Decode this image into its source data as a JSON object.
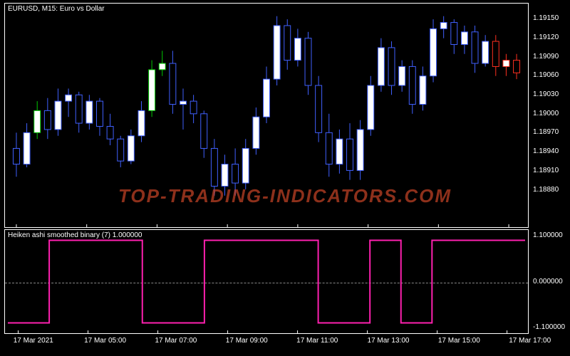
{
  "symbol_title": "EURUSD, M15:  Euro vs  Dollar",
  "indicator_title": "Heiken ashi smoothed binary (7)  1.000000",
  "watermark": "TOP-TRADING-INDICATORS.COM",
  "colors": {
    "background": "#000000",
    "border": "#ffffff",
    "text": "#ffffff",
    "bull_body": "#ffffff",
    "bear_body": "#000000",
    "bull_wick": "#00c800",
    "bear_wick": "#4060ff",
    "red_wick": "#ff3020",
    "indicator_line": "#ff20b0",
    "dotted": "#888888",
    "watermark": "#d94a2a"
  },
  "main_y": {
    "min": 1.1882,
    "max": 1.19175,
    "ticks": [
      1.1915,
      1.1912,
      1.1909,
      1.1906,
      1.1903,
      1.19,
      1.1897,
      1.1894,
      1.1891,
      1.1888
    ],
    "labels": [
      "1.19150",
      "1.19120",
      "1.19090",
      "1.19060",
      "1.19030",
      "1.19000",
      "1.18970",
      "1.18940",
      "1.18910",
      "1.18880"
    ]
  },
  "sub_y": {
    "min": -1.25,
    "max": 1.25,
    "zero_label": "0.000000",
    "hi_label": "1.100000",
    "lo_label": "-1.100000",
    "hi": 1.1,
    "lo": -1.1
  },
  "x_ticks": {
    "positions": [
      0.02,
      0.155,
      0.29,
      0.425,
      0.56,
      0.695,
      0.83,
      0.965
    ],
    "labels": [
      "17 Mar 2021",
      "17 Mar 05:00",
      "17 Mar 07:00",
      "17 Mar 09:00",
      "17 Mar 11:00",
      "17 Mar 13:00",
      "17 Mar 15:00",
      "17 Mar 17:00"
    ]
  },
  "candles": [
    {
      "o": 1.18945,
      "h": 1.1897,
      "l": 1.189,
      "c": 1.1892,
      "w": "b"
    },
    {
      "o": 1.1892,
      "h": 1.18985,
      "l": 1.18915,
      "c": 1.1897,
      "w": "b"
    },
    {
      "o": 1.1897,
      "h": 1.1902,
      "l": 1.1896,
      "c": 1.19005,
      "w": "g"
    },
    {
      "o": 1.19005,
      "h": 1.19025,
      "l": 1.1896,
      "c": 1.18975,
      "w": "b"
    },
    {
      "o": 1.18975,
      "h": 1.1904,
      "l": 1.18965,
      "c": 1.1902,
      "w": "b"
    },
    {
      "o": 1.1902,
      "h": 1.1904,
      "l": 1.18995,
      "c": 1.1903,
      "w": "b"
    },
    {
      "o": 1.1903,
      "h": 1.19035,
      "l": 1.1897,
      "c": 1.18985,
      "w": "b"
    },
    {
      "o": 1.18985,
      "h": 1.1903,
      "l": 1.18975,
      "c": 1.1902,
      "w": "b"
    },
    {
      "o": 1.1902,
      "h": 1.19025,
      "l": 1.18965,
      "c": 1.1898,
      "w": "b"
    },
    {
      "o": 1.1898,
      "h": 1.19,
      "l": 1.1895,
      "c": 1.1896,
      "w": "b"
    },
    {
      "o": 1.1896,
      "h": 1.18965,
      "l": 1.18915,
      "c": 1.18925,
      "w": "b"
    },
    {
      "o": 1.18925,
      "h": 1.18975,
      "l": 1.1892,
      "c": 1.18965,
      "w": "b"
    },
    {
      "o": 1.18965,
      "h": 1.1902,
      "l": 1.18955,
      "c": 1.19005,
      "w": "b"
    },
    {
      "o": 1.19005,
      "h": 1.19085,
      "l": 1.18995,
      "c": 1.1907,
      "w": "g"
    },
    {
      "o": 1.1907,
      "h": 1.191,
      "l": 1.1906,
      "c": 1.1908,
      "w": "g"
    },
    {
      "o": 1.1908,
      "h": 1.191,
      "l": 1.19,
      "c": 1.19015,
      "w": "b"
    },
    {
      "o": 1.19015,
      "h": 1.1904,
      "l": 1.18975,
      "c": 1.1902,
      "w": "b"
    },
    {
      "o": 1.1902,
      "h": 1.1903,
      "l": 1.18985,
      "c": 1.19,
      "w": "b"
    },
    {
      "o": 1.19,
      "h": 1.19005,
      "l": 1.1893,
      "c": 1.18945,
      "w": "b"
    },
    {
      "o": 1.18945,
      "h": 1.1896,
      "l": 1.1887,
      "c": 1.18885,
      "w": "b"
    },
    {
      "o": 1.18885,
      "h": 1.18935,
      "l": 1.1887,
      "c": 1.1892,
      "w": "b"
    },
    {
      "o": 1.1892,
      "h": 1.18945,
      "l": 1.1887,
      "c": 1.1889,
      "w": "b"
    },
    {
      "o": 1.1889,
      "h": 1.1896,
      "l": 1.1888,
      "c": 1.18945,
      "w": "b"
    },
    {
      "o": 1.18945,
      "h": 1.1901,
      "l": 1.18935,
      "c": 1.18995,
      "w": "b"
    },
    {
      "o": 1.18995,
      "h": 1.19075,
      "l": 1.18985,
      "c": 1.19055,
      "w": "b"
    },
    {
      "o": 1.19055,
      "h": 1.19155,
      "l": 1.19045,
      "c": 1.1914,
      "w": "b"
    },
    {
      "o": 1.1914,
      "h": 1.1915,
      "l": 1.1907,
      "c": 1.19085,
      "w": "b"
    },
    {
      "o": 1.19085,
      "h": 1.19135,
      "l": 1.19075,
      "c": 1.1912,
      "w": "b"
    },
    {
      "o": 1.1912,
      "h": 1.1913,
      "l": 1.1903,
      "c": 1.19045,
      "w": "b"
    },
    {
      "o": 1.19045,
      "h": 1.1906,
      "l": 1.18955,
      "c": 1.1897,
      "w": "b"
    },
    {
      "o": 1.1897,
      "h": 1.19,
      "l": 1.189,
      "c": 1.1892,
      "w": "b"
    },
    {
      "o": 1.1892,
      "h": 1.18975,
      "l": 1.18905,
      "c": 1.1896,
      "w": "b"
    },
    {
      "o": 1.1896,
      "h": 1.18985,
      "l": 1.18895,
      "c": 1.1891,
      "w": "b"
    },
    {
      "o": 1.1891,
      "h": 1.1899,
      "l": 1.18895,
      "c": 1.18975,
      "w": "b"
    },
    {
      "o": 1.18975,
      "h": 1.1906,
      "l": 1.18965,
      "c": 1.19045,
      "w": "b"
    },
    {
      "o": 1.19045,
      "h": 1.1912,
      "l": 1.19035,
      "c": 1.19105,
      "w": "b"
    },
    {
      "o": 1.19105,
      "h": 1.19115,
      "l": 1.1903,
      "c": 1.19045,
      "w": "b"
    },
    {
      "o": 1.19045,
      "h": 1.19085,
      "l": 1.19035,
      "c": 1.19075,
      "w": "b"
    },
    {
      "o": 1.19075,
      "h": 1.19085,
      "l": 1.19,
      "c": 1.19015,
      "w": "b"
    },
    {
      "o": 1.19015,
      "h": 1.19075,
      "l": 1.19005,
      "c": 1.1906,
      "w": "b"
    },
    {
      "o": 1.1906,
      "h": 1.1915,
      "l": 1.1905,
      "c": 1.19135,
      "w": "b"
    },
    {
      "o": 1.19135,
      "h": 1.19155,
      "l": 1.1912,
      "c": 1.19145,
      "w": "b"
    },
    {
      "o": 1.19145,
      "h": 1.1915,
      "l": 1.19095,
      "c": 1.1911,
      "w": "b"
    },
    {
      "o": 1.1911,
      "h": 1.1914,
      "l": 1.19095,
      "c": 1.1913,
      "w": "b"
    },
    {
      "o": 1.1913,
      "h": 1.1914,
      "l": 1.19065,
      "c": 1.1908,
      "w": "b"
    },
    {
      "o": 1.1908,
      "h": 1.19125,
      "l": 1.19075,
      "c": 1.19115,
      "w": "b"
    },
    {
      "o": 1.19115,
      "h": 1.19125,
      "l": 1.1906,
      "c": 1.19075,
      "w": "r"
    },
    {
      "o": 1.19075,
      "h": 1.19095,
      "l": 1.1906,
      "c": 1.19085,
      "w": "r"
    },
    {
      "o": 1.19085,
      "h": 1.19095,
      "l": 1.19055,
      "c": 1.19065,
      "w": "r"
    }
  ],
  "indicator_series": [
    -1,
    -1,
    -1,
    1,
    1,
    1,
    1,
    1,
    1,
    1,
    1,
    1,
    -1,
    -1,
    -1,
    -1,
    -1,
    -1,
    1,
    1,
    1,
    1,
    1,
    1,
    1,
    1,
    1,
    1,
    1,
    -1,
    -1,
    -1,
    -1,
    -1,
    1,
    1,
    1,
    -1,
    -1,
    -1,
    1,
    1,
    1,
    1,
    1,
    1,
    1,
    1,
    1
  ],
  "layout": {
    "main_w": 736,
    "main_h": 316,
    "sub_h": 147,
    "candle_body_w": 9,
    "wick_w": 1
  }
}
